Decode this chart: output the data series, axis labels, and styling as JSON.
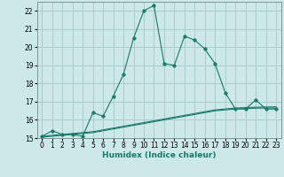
{
  "xlabel": "Humidex (Indice chaleur)",
  "bg_color": "#cce8e8",
  "grid_color": "#aacccc",
  "line_color": "#1a7a6a",
  "x_main": [
    0,
    1,
    2,
    3,
    4,
    5,
    6,
    7,
    8,
    9,
    10,
    11,
    12,
    13,
    14,
    15,
    16,
    17,
    18,
    19,
    20,
    21,
    22,
    23
  ],
  "y_main": [
    15.1,
    15.4,
    15.2,
    15.2,
    15.1,
    16.4,
    16.2,
    17.3,
    18.5,
    20.5,
    22.0,
    22.3,
    19.1,
    19.0,
    20.6,
    20.4,
    19.9,
    19.1,
    17.5,
    16.6,
    16.6,
    17.1,
    16.6,
    16.6
  ],
  "x_line1": [
    0,
    1,
    2,
    3,
    4,
    5,
    6,
    7,
    8,
    9,
    10,
    11,
    12,
    13,
    14,
    15,
    16,
    17,
    18,
    19,
    20,
    21,
    22,
    23
  ],
  "y_line1": [
    15.05,
    15.1,
    15.15,
    15.2,
    15.25,
    15.3,
    15.4,
    15.5,
    15.6,
    15.7,
    15.8,
    15.9,
    16.0,
    16.1,
    16.2,
    16.3,
    16.4,
    16.5,
    16.55,
    16.6,
    16.62,
    16.64,
    16.65,
    16.65
  ],
  "x_line2": [
    0,
    1,
    2,
    3,
    4,
    5,
    6,
    7,
    8,
    9,
    10,
    11,
    12,
    13,
    14,
    15,
    16,
    17,
    18,
    19,
    20,
    21,
    22,
    23
  ],
  "y_line2": [
    15.1,
    15.15,
    15.2,
    15.25,
    15.3,
    15.35,
    15.45,
    15.55,
    15.65,
    15.75,
    15.85,
    15.95,
    16.05,
    16.15,
    16.25,
    16.35,
    16.45,
    16.55,
    16.6,
    16.65,
    16.68,
    16.7,
    16.71,
    16.72
  ],
  "ylim": [
    15.0,
    22.5
  ],
  "yticks": [
    15,
    16,
    17,
    18,
    19,
    20,
    21,
    22
  ],
  "xticks": [
    0,
    1,
    2,
    3,
    4,
    5,
    6,
    7,
    8,
    9,
    10,
    11,
    12,
    13,
    14,
    15,
    16,
    17,
    18,
    19,
    20,
    21,
    22,
    23
  ],
  "xlabel_fontsize": 6.5,
  "tick_fontsize": 5.5,
  "marker_size": 2.5
}
